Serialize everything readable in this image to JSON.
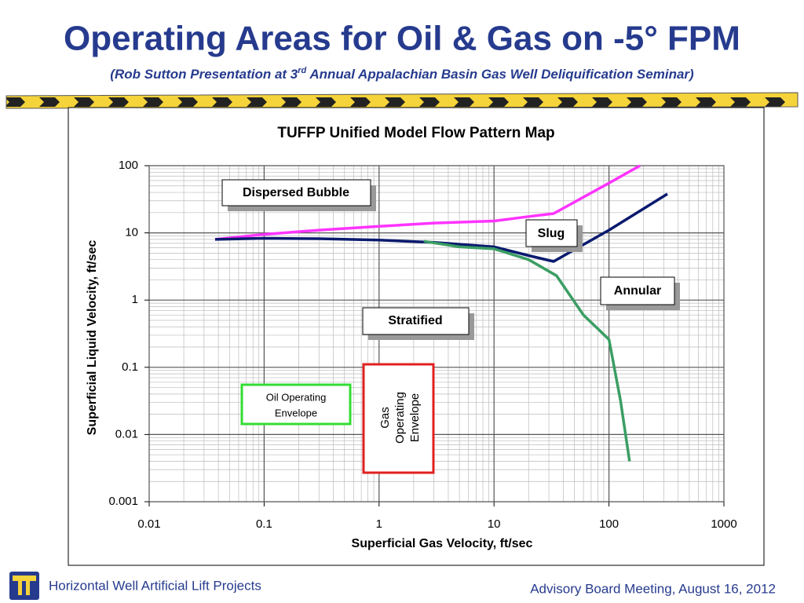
{
  "slide": {
    "title": "Operating Areas for Oil & Gas on -5° FPM",
    "subtitle": [
      "(Rob Sutton Presentation at 3",
      "rd",
      " Annual Appalachian Basin Gas Well Deliquification Seminar)"
    ],
    "footer_left": "Horizontal Well Artificial Lift Projects",
    "footer_right": "Advisory Board Meeting, August 16, 2012"
  },
  "chart_data": {
    "type": "line",
    "title": "TUFFP Unified Model Flow Pattern Map",
    "x_label": "Superficial Gas Velocity, ft/sec",
    "y_label": "Superficial Liquid Velocity, ft/sec",
    "xscale": "log",
    "yscale": "log",
    "grid": true,
    "xlim": [
      0.01,
      1000
    ],
    "xticks": [
      0.01,
      0.1,
      1,
      10,
      100,
      1000
    ],
    "ylim": [
      0.001,
      100
    ],
    "yticks": [
      0.001,
      0.01,
      0.1,
      1,
      10,
      100
    ],
    "series": [
      {
        "color": "#ff33ff",
        "x": [
          0.0375,
          0.1,
          0.3,
          1,
          3,
          10,
          20,
          33,
          100,
          186
        ],
        "values": [
          8,
          9.5,
          11,
          12.5,
          14,
          15,
          17.5,
          19.4,
          55,
          100
        ]
      },
      {
        "color": "#0a1a6e",
        "x": [
          0.0375,
          0.1,
          0.3,
          1,
          3,
          10,
          20,
          33,
          100,
          322
        ],
        "values": [
          8,
          8.3,
          8.2,
          7.8,
          7.2,
          6.2,
          4.6,
          3.76,
          11,
          38
        ]
      },
      {
        "color": "#3a9e63",
        "x": [
          2.45,
          5,
          10,
          20,
          35,
          60,
          100,
          126,
          151
        ],
        "values": [
          7.5,
          6.2,
          5.8,
          4,
          2.3,
          0.6,
          0.26,
          0.032,
          0.004
        ]
      }
    ],
    "annotations": {
      "dispersed_bubble": "Dispersed Bubble",
      "slug": "Slug",
      "annular": "Annular",
      "stratified": "Stratified",
      "oil_envelope": [
        "Oil Operating",
        "Envelope"
      ],
      "gas_envelope": [
        "Gas",
        "Operating",
        "Envelope"
      ]
    }
  }
}
